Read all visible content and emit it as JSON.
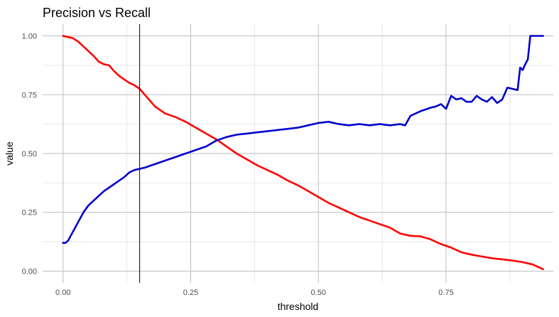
{
  "chart_data": {
    "type": "line",
    "title": "Precision vs Recall",
    "xlabel": "threshold",
    "ylabel": "value",
    "xlim": [
      -0.04,
      0.96
    ],
    "ylim": [
      -0.05,
      1.05
    ],
    "x_ticks": [
      0.0,
      0.25,
      0.5,
      0.75
    ],
    "x_tick_labels": [
      "0.00",
      "0.25",
      "0.50",
      "0.75"
    ],
    "y_ticks": [
      0.0,
      0.25,
      0.5,
      0.75,
      1.0
    ],
    "y_tick_labels": [
      "0.00",
      "0.25",
      "0.50",
      "0.75",
      "1.00"
    ],
    "grid": true,
    "vline_x": 0.15,
    "vline_color": "#000000",
    "series": [
      {
        "color": "#ff0000",
        "x": [
          0.0,
          0.01,
          0.02,
          0.03,
          0.04,
          0.05,
          0.06,
          0.07,
          0.08,
          0.09,
          0.1,
          0.11,
          0.12,
          0.13,
          0.14,
          0.15,
          0.16,
          0.17,
          0.18,
          0.19,
          0.2,
          0.22,
          0.24,
          0.26,
          0.28,
          0.3,
          0.32,
          0.34,
          0.36,
          0.38,
          0.4,
          0.42,
          0.44,
          0.46,
          0.48,
          0.5,
          0.52,
          0.54,
          0.56,
          0.58,
          0.6,
          0.62,
          0.64,
          0.66,
          0.68,
          0.7,
          0.72,
          0.74,
          0.76,
          0.78,
          0.8,
          0.82,
          0.84,
          0.86,
          0.88,
          0.9,
          0.92,
          0.94
        ],
        "values": [
          1.0,
          0.995,
          0.99,
          0.975,
          0.955,
          0.935,
          0.915,
          0.89,
          0.88,
          0.875,
          0.85,
          0.83,
          0.815,
          0.8,
          0.79,
          0.775,
          0.75,
          0.725,
          0.7,
          0.685,
          0.67,
          0.655,
          0.635,
          0.61,
          0.585,
          0.56,
          0.53,
          0.5,
          0.475,
          0.45,
          0.43,
          0.41,
          0.385,
          0.365,
          0.34,
          0.315,
          0.29,
          0.27,
          0.25,
          0.23,
          0.215,
          0.2,
          0.185,
          0.16,
          0.15,
          0.148,
          0.135,
          0.115,
          0.1,
          0.08,
          0.07,
          0.062,
          0.055,
          0.05,
          0.045,
          0.038,
          0.028,
          0.008
        ]
      },
      {
        "color": "#0000cd",
        "x": [
          0.0,
          0.005,
          0.01,
          0.015,
          0.02,
          0.03,
          0.04,
          0.05,
          0.06,
          0.07,
          0.08,
          0.09,
          0.1,
          0.11,
          0.12,
          0.13,
          0.14,
          0.15,
          0.16,
          0.18,
          0.2,
          0.22,
          0.24,
          0.26,
          0.28,
          0.3,
          0.32,
          0.34,
          0.36,
          0.38,
          0.4,
          0.42,
          0.44,
          0.46,
          0.48,
          0.5,
          0.52,
          0.54,
          0.56,
          0.58,
          0.6,
          0.62,
          0.64,
          0.66,
          0.67,
          0.68,
          0.7,
          0.72,
          0.73,
          0.74,
          0.75,
          0.76,
          0.77,
          0.78,
          0.79,
          0.8,
          0.81,
          0.82,
          0.83,
          0.84,
          0.85,
          0.86,
          0.87,
          0.88,
          0.89,
          0.895,
          0.9,
          0.905,
          0.91,
          0.915,
          0.92,
          0.93,
          0.94
        ],
        "values": [
          0.12,
          0.12,
          0.13,
          0.15,
          0.17,
          0.21,
          0.25,
          0.28,
          0.3,
          0.32,
          0.34,
          0.355,
          0.37,
          0.385,
          0.4,
          0.42,
          0.43,
          0.435,
          0.44,
          0.455,
          0.47,
          0.485,
          0.5,
          0.515,
          0.53,
          0.555,
          0.57,
          0.58,
          0.585,
          0.59,
          0.595,
          0.6,
          0.605,
          0.61,
          0.62,
          0.63,
          0.635,
          0.625,
          0.62,
          0.625,
          0.62,
          0.625,
          0.62,
          0.625,
          0.62,
          0.66,
          0.68,
          0.695,
          0.7,
          0.71,
          0.69,
          0.745,
          0.73,
          0.735,
          0.72,
          0.72,
          0.745,
          0.73,
          0.72,
          0.74,
          0.715,
          0.73,
          0.78,
          0.775,
          0.77,
          0.865,
          0.855,
          0.88,
          0.9,
          1.0,
          1.0,
          1.0,
          1.0
        ]
      }
    ]
  }
}
